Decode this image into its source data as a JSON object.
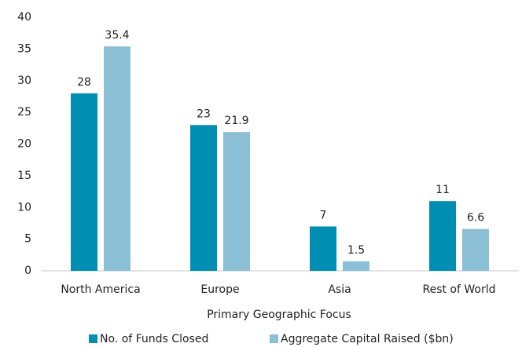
{
  "chart_data": {
    "type": "bar",
    "x_label": "Primary Geographic Focus",
    "categories": [
      "North America",
      "Europe",
      "Asia",
      "Rest of World"
    ],
    "series": [
      {
        "name": "No. of Funds Closed",
        "color": "#008fb2",
        "values": [
          28,
          23,
          7,
          11
        ]
      },
      {
        "name": "Aggregate Capital Raised ($bn)",
        "color": "#8bbfd6",
        "values": [
          35.4,
          21.9,
          1.5,
          6.6
        ]
      }
    ],
    "ylim": [
      0,
      40
    ],
    "yticks": [
      0,
      5,
      10,
      15,
      20,
      25,
      30,
      35,
      40
    ],
    "grid": false
  }
}
